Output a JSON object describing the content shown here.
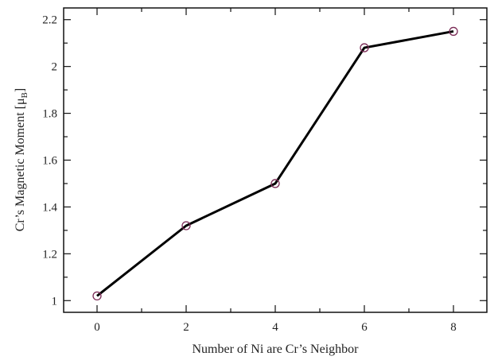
{
  "chart_data": {
    "type": "line",
    "title": "",
    "xlabel": "Number of Ni are Cr’s Neighbor",
    "ylabel_main": "Cr’s Magnetic Moment [μ",
    "ylabel_sub": "B",
    "ylabel_close": "]",
    "xlim": [
      -0.75,
      8.75
    ],
    "ylim": [
      0.95,
      2.25
    ],
    "xticks": [
      0,
      2,
      4,
      6,
      8
    ],
    "xtick_labels": [
      "0",
      "2",
      "4",
      "6",
      "8"
    ],
    "yticks": [
      1,
      1.2,
      1.4,
      1.6,
      1.8,
      2,
      2.2
    ],
    "ytick_labels": [
      "1",
      "1.2",
      "1.4",
      "1.6",
      "1.8",
      "2",
      "2.2"
    ],
    "grid": false,
    "series": [
      {
        "x": [
          0,
          2,
          4,
          6,
          8
        ],
        "y": [
          1.02,
          1.32,
          1.5,
          2.08,
          2.15
        ],
        "line_color": "#000000",
        "marker": "circle",
        "marker_color": "#7a2a55"
      }
    ]
  }
}
